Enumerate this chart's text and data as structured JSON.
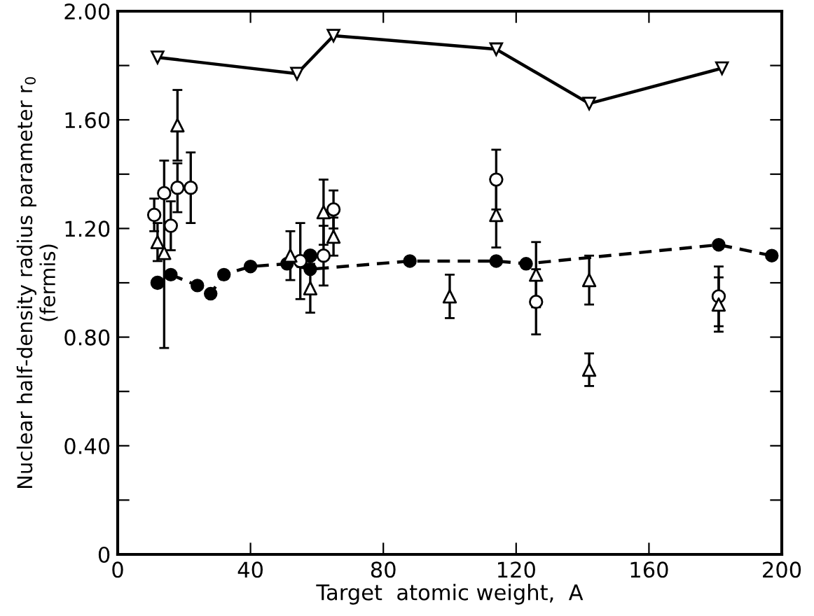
{
  "chart_data": {
    "type": "line",
    "xlabel": "Target  atomic weight,  A",
    "ylabel": "Nuclear half-density radius parameter r$_{0}$\n(fermis)",
    "xlim": [
      0,
      200
    ],
    "xticks": [
      0,
      40,
      80,
      120,
      160,
      200
    ],
    "ylim": [
      0,
      2.0
    ],
    "yticks": [
      {
        "value": 0,
        "label": "0"
      },
      {
        "value": 0.2,
        "label": null
      },
      {
        "value": 0.4,
        "label": "0.40"
      },
      {
        "value": 0.6,
        "label": null
      },
      {
        "value": 0.8,
        "label": "0.80"
      },
      {
        "value": 1.0,
        "label": null
      },
      {
        "value": 1.2,
        "label": "1.20"
      },
      {
        "value": 1.4,
        "label": null
      },
      {
        "value": 1.6,
        "label": "1.60"
      },
      {
        "value": 1.8,
        "label": null
      },
      {
        "value": 2.0,
        "label": "2.00"
      }
    ],
    "grid": false,
    "legend": false,
    "series": [
      {
        "color": "#000000",
        "marker": "triangle_down",
        "line_style": "solid",
        "x": [
          12,
          54,
          65,
          114,
          142,
          182
        ],
        "values": [
          1.83,
          1.77,
          1.91,
          1.86,
          1.66,
          1.79
        ]
      },
      {
        "type": "line",
        "color": "#000000",
        "marker": "circle",
        "line_style": "dashed",
        "x": [
          16,
          24,
          28,
          32,
          40,
          51,
          58,
          88,
          114,
          123,
          181,
          197
        ],
        "values": [
          1.03,
          0.99,
          0.96,
          1.03,
          1.06,
          1.07,
          1.05,
          1.08,
          1.08,
          1.07,
          1.14,
          1.1
        ]
      },
      {
        "type": "scatter",
        "color": "#000000",
        "marker": "circle",
        "x": [
          12,
          58
        ],
        "values": [
          1.0,
          1.1
        ]
      },
      {
        "type": "scatter",
        "color": "#000000",
        "marker": "circle",
        "x": [
          11,
          14,
          16,
          18,
          22,
          55,
          62,
          65,
          114,
          126,
          181
        ],
        "values": [
          1.25,
          1.33,
          1.21,
          1.35,
          1.35,
          1.08,
          1.1,
          1.27,
          1.38,
          0.93,
          0.95
        ],
        "errors": [
          0.06,
          [
            0.76,
            1.45
          ],
          0.09,
          0.09,
          0.13,
          0.14,
          0.11,
          0.07,
          0.11,
          0.12,
          0.11
        ]
      },
      {
        "type": "scatter",
        "color": "#000000",
        "marker": "triangle",
        "x": [
          12,
          14,
          18,
          52,
          58,
          62,
          65,
          100,
          114,
          126,
          142,
          142,
          181
        ],
        "values": [
          1.15,
          1.11,
          1.58,
          1.1,
          0.98,
          1.26,
          1.17,
          0.95,
          1.25,
          1.03,
          1.01,
          0.68,
          0.92
        ],
        "errors": [
          0.07,
          null,
          0.13,
          0.09,
          0.09,
          0.12,
          0.07,
          0.08,
          0.12,
          0.12,
          0.09,
          0.06,
          0.1
        ]
      }
    ]
  }
}
